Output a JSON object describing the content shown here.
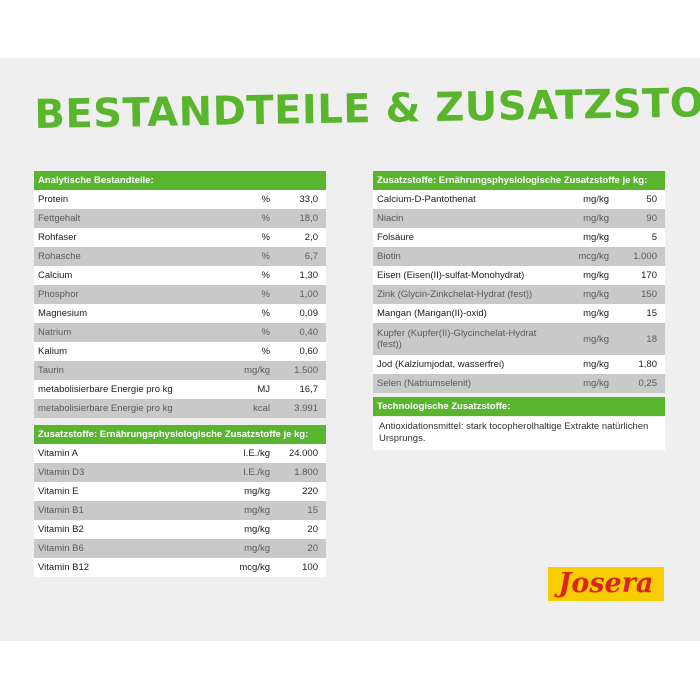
{
  "title": "BESTANDTEILE & ZUSATZSTOFFE",
  "analytic": {
    "header": "Analytische Bestandteile:",
    "rows": [
      {
        "name": "Protein",
        "unit": "%",
        "value": "33,0"
      },
      {
        "name": "Fettgehalt",
        "unit": "%",
        "value": "18,0"
      },
      {
        "name": "Rohfaser",
        "unit": "%",
        "value": "2,0"
      },
      {
        "name": "Rohasche",
        "unit": "%",
        "value": "6,7"
      },
      {
        "name": "Calcium",
        "unit": "%",
        "value": "1,30"
      },
      {
        "name": "Phosphor",
        "unit": "%",
        "value": "1,00"
      },
      {
        "name": "Magnesium",
        "unit": "%",
        "value": "0,09"
      },
      {
        "name": "Natrium",
        "unit": "%",
        "value": "0,40"
      },
      {
        "name": "Kalium",
        "unit": "%",
        "value": "0,60"
      },
      {
        "name": "Taurin",
        "unit": "mg/kg",
        "value": "1.500"
      },
      {
        "name": "metabolisierbare Energie pro kg",
        "unit": "MJ",
        "value": "16,7"
      },
      {
        "name": "metabolisierbare Energie pro kg",
        "unit": "kcal",
        "value": "3.991"
      }
    ]
  },
  "vitamins": {
    "header": "Zusatzstoffe: Ernährungsphysiologische Zusatzstoffe je kg:",
    "rows": [
      {
        "name": "Vitamin A",
        "unit": "I.E./kg",
        "value": "24.000"
      },
      {
        "name": "Vitamin D3",
        "unit": "I.E./kg",
        "value": "1.800"
      },
      {
        "name": "Vitamin E",
        "unit": "mg/kg",
        "value": "220"
      },
      {
        "name": "Vitamin B1",
        "unit": "mg/kg",
        "value": "15"
      },
      {
        "name": "Vitamin B2",
        "unit": "mg/kg",
        "value": "20"
      },
      {
        "name": "Vitamin B6",
        "unit": "mg/kg",
        "value": "20"
      },
      {
        "name": "Vitamin B12",
        "unit": "mcg/kg",
        "value": "100"
      }
    ]
  },
  "additives": {
    "header": "Zusatzstoffe: Ernährungsphysiologische Zusatzstoffe je kg:",
    "rows": [
      {
        "name": "Calcium-D-Pantothenat",
        "unit": "mg/kg",
        "value": "50"
      },
      {
        "name": "Niacin",
        "unit": "mg/kg",
        "value": "90"
      },
      {
        "name": "Folsäure",
        "unit": "mg/kg",
        "value": "5"
      },
      {
        "name": "Biotin",
        "unit": "mcg/kg",
        "value": "1.000"
      },
      {
        "name": "Eisen (Eisen(II)-sulfat-Monohydrat)",
        "unit": "mg/kg",
        "value": "170"
      },
      {
        "name": "Zink (Glycin-Zinkchelat-Hydrat (fest))",
        "unit": "mg/kg",
        "value": "150"
      },
      {
        "name": "Mangan (Mangan(II)-oxid)",
        "unit": "mg/kg",
        "value": "15"
      },
      {
        "name": "Kupfer (Kupfer(II)-Glycinchelat-Hydrat (fest))",
        "unit": "mg/kg",
        "value": "18"
      },
      {
        "name": "Jod (Kalziumjodat, wasserfrei)",
        "unit": "mg/kg",
        "value": "1,80"
      },
      {
        "name": "Selen (Natriumselenit)",
        "unit": "mg/kg",
        "value": "0,25"
      }
    ]
  },
  "technological": {
    "header": "Technologische Zusatzstoffe:",
    "text": "Antioxidationsmittel: stark tocopherolhaltige Extrakte natürlichen Ursprungs."
  },
  "logo": {
    "text": "Josera",
    "bg": "#f7cc00",
    "color": "#d8261c"
  },
  "colors": {
    "accent": "#59b52e",
    "row_alt": "#c9c9c9",
    "panel": "#efefef"
  }
}
